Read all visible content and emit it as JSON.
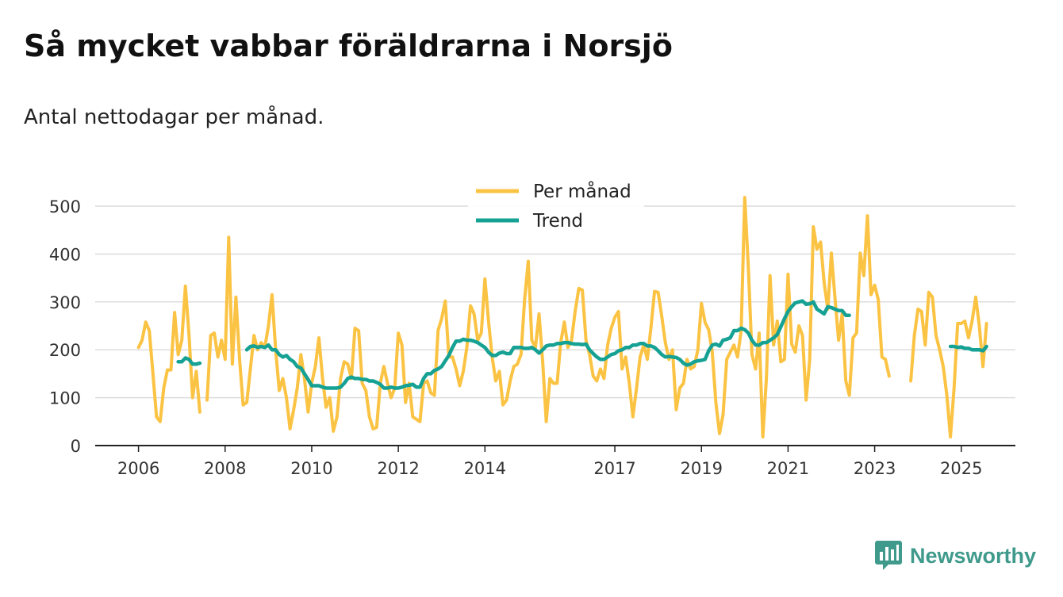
{
  "header": {
    "title": "Så mycket vabbar föräldrarna i Norsjö",
    "subtitle": "Antal nettodagar per månad."
  },
  "brand": {
    "name": "Newsworthy",
    "icon": "newsworthy-logo-icon",
    "color": "#3f9a8c"
  },
  "colors": {
    "per_manad": "#fbc343",
    "trend": "#15a193",
    "grid": "#dcdcdc",
    "axis": "#222222"
  },
  "chart_data": {
    "type": "line",
    "title": "Så mycket vabbar föräldrarna i Norsjö",
    "subtitle": "Antal nettodagar per månad.",
    "xlabel": "",
    "ylabel": "",
    "ylim": [
      0,
      500
    ],
    "yticks": [
      0,
      100,
      200,
      300,
      400,
      500
    ],
    "xticks": [
      {
        "label": "2006",
        "x": 0
      },
      {
        "label": "2008",
        "x": 24
      },
      {
        "label": "2010",
        "x": 48
      },
      {
        "label": "2012",
        "x": 72
      },
      {
        "label": "2014",
        "x": 96
      },
      {
        "label": "2017",
        "x": 132
      },
      {
        "label": "2019",
        "x": 156
      },
      {
        "label": "2021",
        "x": 180
      },
      {
        "label": "2023",
        "x": 204
      },
      {
        "label": "2025",
        "x": 228
      }
    ],
    "x_unit": "month index since Jan 2006",
    "xlim": [
      -12,
      243
    ],
    "legend": {
      "position": "top-center",
      "entries": [
        "Per månad",
        "Trend"
      ]
    },
    "series": [
      {
        "name": "Per månad",
        "segments": [
          {
            "x0": 0,
            "values": [
              205,
              220,
              258,
              240,
              150,
              60,
              50,
              120,
              158,
              158,
              278,
              190,
              220,
              333,
              230,
              100,
              155,
              70
            ]
          },
          {
            "x0": 19,
            "values": [
              95,
              230,
              235,
              185,
              220,
              180,
              435,
              170,
              310,
              180,
              85,
              90,
              160,
              230,
              200,
              215,
              205,
              250,
              315,
              200,
              115,
              140,
              100,
              35,
              75,
              120,
              190,
              140,
              70,
              130,
              165,
              225,
              140,
              80,
              100,
              30,
              60,
              140,
              175,
              170,
              140,
              245,
              240,
              130,
              115,
              60,
              35,
              38,
              130,
              165,
              130,
              100,
              120,
              235,
              210,
              90,
              130,
              60,
              55,
              50,
              130,
              135,
              110,
              105,
              240,
              265,
              302,
              185,
              185,
              160,
              125,
              155,
              205,
              292,
              275,
              220,
              235,
              348,
              260,
              185,
              135,
              155,
              85,
              95,
              135,
              165,
              170,
              190,
              305,
              385,
              220,
              205,
              275,
              175,
              50,
              140,
              130,
              130,
              215,
              258,
              205,
              220,
              280,
              328,
              325,
              220,
              190,
              145,
              135,
              160,
              140,
              210,
              245,
              268,
              280,
              160,
              185,
              130,
              60,
              120,
              185,
              210,
              180,
              245,
              322,
              320,
              270,
              215,
              180,
              200,
              75,
              120,
              130,
              180,
              160,
              165,
              200,
              297,
              257,
              242,
              195,
              90,
              25,
              65,
              180,
              195,
              210,
              185,
              240,
              518,
              370,
              190,
              160,
              235,
              18,
              140,
              355,
              210,
              260,
              175,
              180,
              358,
              212,
              195,
              250,
              230,
              95,
              180,
              457,
              410,
              425,
              340,
              285,
              402,
              310,
              220,
              275,
              135,
              105,
              225,
              235,
              402,
              355,
              480,
              315,
              335,
              305,
              185,
              180,
              145
            ]
          },
          {
            "x0": 214,
            "values": [
              135,
              230,
              285,
              280,
              210,
              320,
              310,
              230,
              200,
              165,
              105,
              18,
              120,
              255,
              255,
              260,
              225,
              260,
              310,
              250,
              165,
              255
            ]
          }
        ]
      },
      {
        "name": "Trend",
        "segments": [
          {
            "x0": 11,
            "values": [
              175,
              175,
              183,
              180,
              170,
              170,
              172
            ]
          },
          {
            "x0": 30,
            "values": [
              200,
              207,
              208,
              205,
              207,
              205,
              210,
              200,
              200,
              190,
              185,
              188,
              180,
              175,
              165,
              162,
              150,
              138,
              125,
              125,
              125,
              122,
              120,
              120,
              120,
              120,
              122,
              130,
              140,
              143,
              140,
              140,
              138,
              138,
              135,
              135,
              132,
              128,
              120,
              120,
              122,
              120,
              120,
              122,
              125,
              126,
              128,
              122,
              122,
              140,
              150,
              150,
              157,
              160,
              165,
              177,
              188,
              205,
              218,
              218,
              222,
              220,
              220,
              218,
              215,
              210,
              205,
              195,
              188,
              188,
              193,
              195,
              192,
              192,
              205,
              205,
              205,
              203,
              203,
              205,
              200,
              193,
              200,
              208,
              210,
              210,
              213,
              213,
              215,
              215,
              213,
              212,
              212,
              211,
              212,
              200,
              192,
              185,
              180,
              180,
              185,
              190,
              192,
              198,
              200,
              205,
              205,
              210,
              210,
              213,
              213,
              208,
              208,
              205,
              198,
              190,
              185,
              186,
              185,
              184,
              180,
              172,
              168,
              170,
              175,
              177,
              178,
              180,
              198,
              210,
              212,
              208,
              220,
              222,
              225,
              240,
              240,
              245,
              242,
              235,
              220,
              210,
              210,
              215,
              215,
              220,
              225,
              232,
              248,
              265,
              280,
              290,
              298,
              300,
              302,
              295,
              296,
              300,
              285,
              280,
              275,
              290,
              288,
              285,
              282,
              282,
              272,
              272
            ]
          },
          {
            "x0": 225,
            "values": [
              207,
              207,
              205,
              206,
              203,
              203,
              200,
              200,
              200,
              198,
              207
            ]
          }
        ]
      }
    ]
  }
}
